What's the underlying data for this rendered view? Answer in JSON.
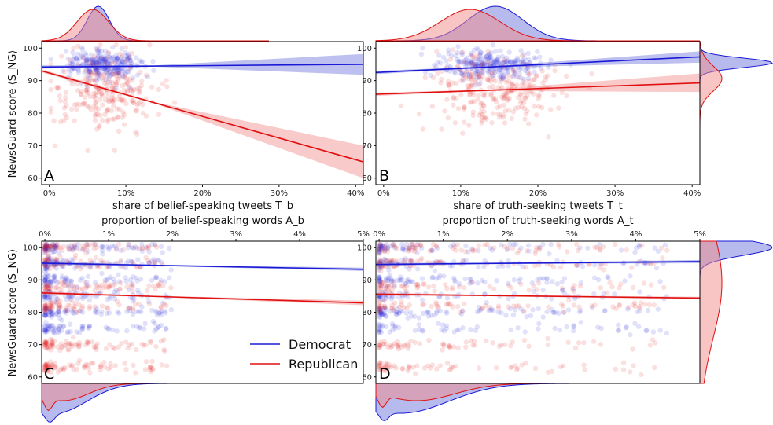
{
  "figure": {
    "y_axis_label": "NewsGuard score ⟨S_NG⟩",
    "legend": [
      {
        "name": "Democrat",
        "color": "#1a1ad6"
      },
      {
        "name": "Republican",
        "color": "#e01010"
      }
    ],
    "colors": {
      "democrat": "#1a1ad6",
      "republican": "#e01010",
      "dem_band": "#6f76dc",
      "rep_band": "#f28a8a"
    }
  },
  "chart_data": [
    {
      "panel": "A",
      "type": "scatter",
      "xlabel": "share of belief-speaking tweets T_b",
      "ylabel": "NewsGuard score ⟨S_NG⟩",
      "x_ticks": [
        "0%",
        "10%",
        "20%",
        "30%",
        "40%"
      ],
      "y_ticks": [
        "60",
        "70",
        "80",
        "90",
        "100"
      ],
      "xlim": [
        -0.01,
        0.41
      ],
      "ylim": [
        58,
        102
      ],
      "series": [
        {
          "name": "Democrat",
          "fit": {
            "x": [
              -0.01,
              0.41
            ],
            "y": [
              94.2,
              95.0
            ],
            "band_lo_end": 91.8,
            "band_hi_end": 98.2
          }
        },
        {
          "name": "Republican",
          "fit": {
            "x": [
              -0.01,
              0.41
            ],
            "y": [
              93.0,
              65.0
            ],
            "band_lo_end": 60.0,
            "band_hi_end": 70.0
          }
        }
      ]
    },
    {
      "panel": "B",
      "type": "scatter",
      "xlabel": "share of truth-seeking tweets T_t",
      "x_ticks": [
        "0%",
        "10%",
        "20%",
        "30%",
        "40%"
      ],
      "y_ticks": [
        "60",
        "70",
        "80",
        "90",
        "100"
      ],
      "xlim": [
        -0.01,
        0.41
      ],
      "ylim": [
        58,
        102
      ],
      "series": [
        {
          "name": "Democrat",
          "fit": {
            "x": [
              -0.01,
              0.41
            ],
            "y": [
              92.5,
              97.3
            ],
            "band_lo_end": 95.5,
            "band_hi_end": 99.0
          }
        },
        {
          "name": "Republican",
          "fit": {
            "x": [
              -0.01,
              0.41
            ],
            "y": [
              85.8,
              89.3
            ],
            "band_lo_end": 86.5,
            "band_hi_end": 92.2
          }
        }
      ]
    },
    {
      "panel": "C",
      "type": "scatter",
      "xlabel": "proportion of belief-speaking words A_b",
      "x_ticks": [
        "0%",
        "1%",
        "2%",
        "3%",
        "4%",
        "5%"
      ],
      "y_ticks": [
        "60",
        "70",
        "80",
        "90",
        "100"
      ],
      "xlim": [
        -0.0005,
        0.05
      ],
      "ylim": [
        58,
        102
      ],
      "series": [
        {
          "name": "Democrat",
          "fit": {
            "x": [
              -0.0005,
              0.05
            ],
            "y": [
              95.2,
              93.3
            ],
            "band_lo_end": 92.8,
            "band_hi_end": 93.8
          }
        },
        {
          "name": "Republican",
          "fit": {
            "x": [
              -0.0005,
              0.05
            ],
            "y": [
              86.0,
              82.9
            ],
            "band_lo_end": 82.2,
            "band_hi_end": 83.6
          }
        }
      ]
    },
    {
      "panel": "D",
      "type": "scatter",
      "xlabel": "proportion of truth-seeking words A_t",
      "x_ticks": [
        "0%",
        "1%",
        "2%",
        "3%",
        "4%",
        "5%"
      ],
      "y_ticks": [
        "60",
        "70",
        "80",
        "90",
        "100"
      ],
      "xlim": [
        -0.0005,
        0.05
      ],
      "ylim": [
        58,
        102
      ],
      "series": [
        {
          "name": "Democrat",
          "fit": {
            "x": [
              -0.0005,
              0.05
            ],
            "y": [
              94.8,
              95.7
            ],
            "band_lo_end": 95.2,
            "band_hi_end": 96.2
          }
        },
        {
          "name": "Republican",
          "fit": {
            "x": [
              -0.0005,
              0.05
            ],
            "y": [
              85.6,
              84.4
            ],
            "band_lo_end": 84.0,
            "band_hi_end": 84.8
          }
        }
      ]
    }
  ]
}
